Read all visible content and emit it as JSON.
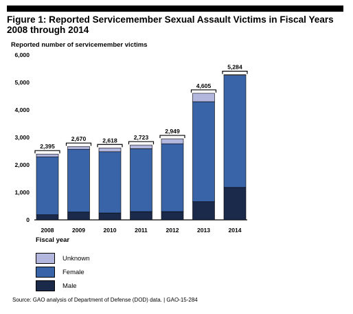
{
  "figure": {
    "title": "Figure 1: Reported Servicemember Sexual Assault Victims in Fiscal Years 2008 through 2014",
    "source": "Source: GAO analysis of Department of Defense (DOD) data.  |  GAO-15-284"
  },
  "chart_data": {
    "type": "bar",
    "stacked": true,
    "ylabel": "Reported number of servicemember victims",
    "xlabel": "Fiscal year",
    "ylim": [
      0,
      6000
    ],
    "yticks": [
      "0",
      "1,000",
      "2,000",
      "3,000",
      "4,000",
      "5,000",
      "6,000"
    ],
    "categories": [
      "2008",
      "2009",
      "2010",
      "2011",
      "2012",
      "2013",
      "2014"
    ],
    "totals": [
      "2,395",
      "2,670",
      "2,618",
      "2,723",
      "2,949",
      "4,605",
      "5,284"
    ],
    "series": [
      {
        "name": "Male",
        "color": "#1b2a4a",
        "values": [
          185,
          285,
          250,
          300,
          300,
          660,
          1180
        ]
      },
      {
        "name": "Female",
        "color": "#3a64a8",
        "values": [
          2110,
          2285,
          2230,
          2290,
          2470,
          3640,
          4080
        ]
      },
      {
        "name": "Unknown",
        "color": "#b3b6dd",
        "values": [
          100,
          100,
          138,
          133,
          179,
          305,
          24
        ]
      }
    ],
    "legend": {
      "placement": "bottom-left",
      "order": [
        "Unknown",
        "Female",
        "Male"
      ]
    }
  }
}
